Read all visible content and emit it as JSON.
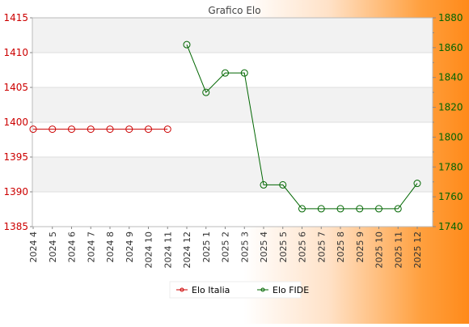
{
  "chart_data": {
    "type": "line",
    "title": "Grafico Elo",
    "categories": [
      "2024 4",
      "2024 5",
      "2024 6",
      "2024 7",
      "2024 8",
      "2024 9",
      "2024 10",
      "2024 11",
      "2024 12",
      "2025 1",
      "2025 2",
      "2025 3",
      "2025 4",
      "2025 5",
      "2025 6",
      "2025 7",
      "2025 8",
      "2025 9",
      "2025 10",
      "2025 11",
      "2025 12"
    ],
    "y_left": {
      "min": 1385,
      "max": 1415,
      "ticks": [
        1385,
        1390,
        1395,
        1400,
        1405,
        1410,
        1415
      ],
      "color": "#cc0000"
    },
    "y_right": {
      "min": 1740,
      "max": 1880,
      "ticks": [
        1740,
        1760,
        1780,
        1800,
        1820,
        1840,
        1860,
        1880
      ],
      "color": "#006600"
    },
    "series": [
      {
        "name": "Elo Italia",
        "axis": "left",
        "color": "#cc0000",
        "values": [
          1399,
          1399,
          1399,
          1399,
          1399,
          1399,
          1399,
          1399,
          null,
          null,
          null,
          null,
          null,
          null,
          null,
          null,
          null,
          null,
          null,
          null,
          null
        ]
      },
      {
        "name": "Elo FIDE",
        "axis": "right",
        "color": "#006600",
        "values": [
          null,
          null,
          null,
          null,
          null,
          null,
          null,
          null,
          1862,
          1830,
          1843,
          1843,
          1768,
          1768,
          1752,
          1752,
          1752,
          1752,
          1752,
          1752,
          1769
        ]
      }
    ],
    "grid": true,
    "legend_position": "bottom-center"
  }
}
